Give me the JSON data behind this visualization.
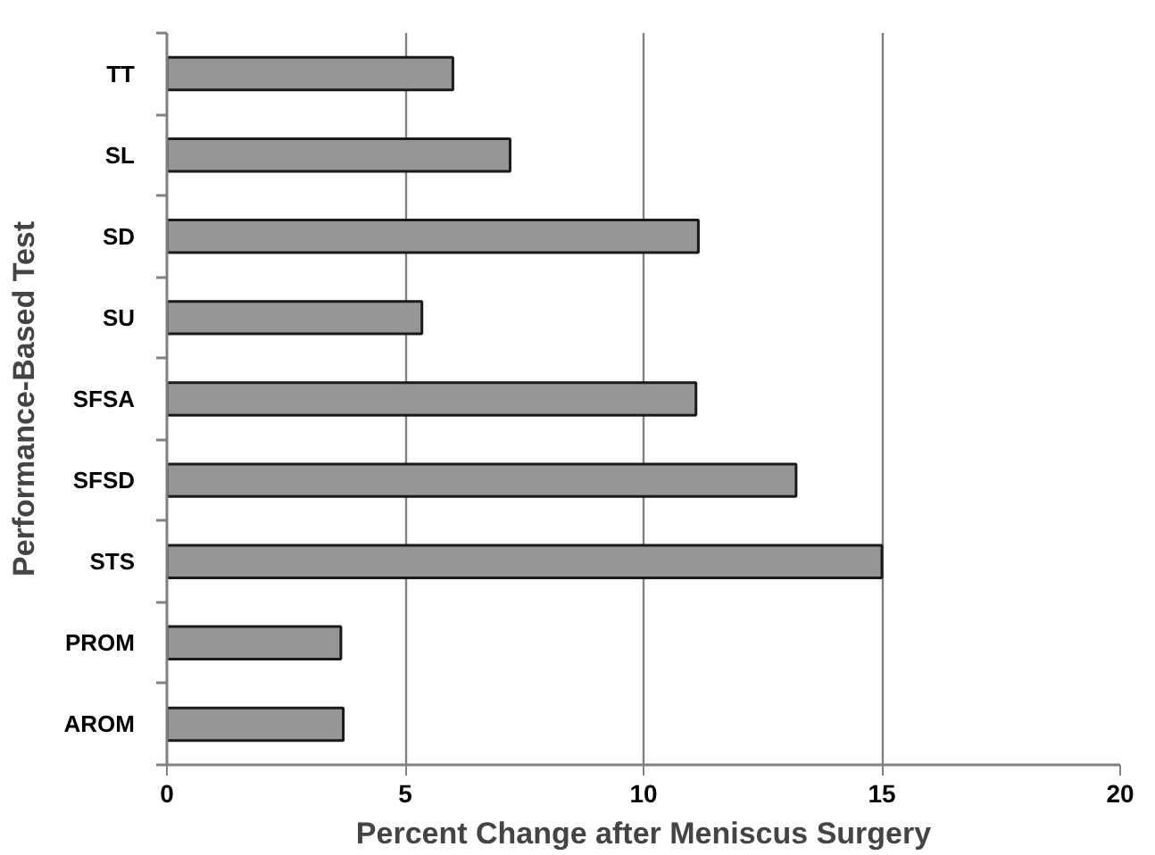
{
  "chart_data": {
    "type": "bar",
    "orientation": "horizontal",
    "xlabel": "Percent Change after Meniscus Surgery",
    "ylabel": "Performance-Based Test",
    "categories": [
      "TT",
      "SL",
      "SD",
      "SU",
      "SFSA",
      "SFSD",
      "STS",
      "PROM",
      "AROM"
    ],
    "values": [
      6.0,
      7.2,
      11.15,
      5.35,
      11.1,
      13.2,
      15.0,
      3.65,
      3.7
    ],
    "color": "#969696",
    "xlim": [
      0,
      20
    ],
    "xticks": [
      0,
      5,
      10,
      15,
      20
    ],
    "grid": "x"
  }
}
